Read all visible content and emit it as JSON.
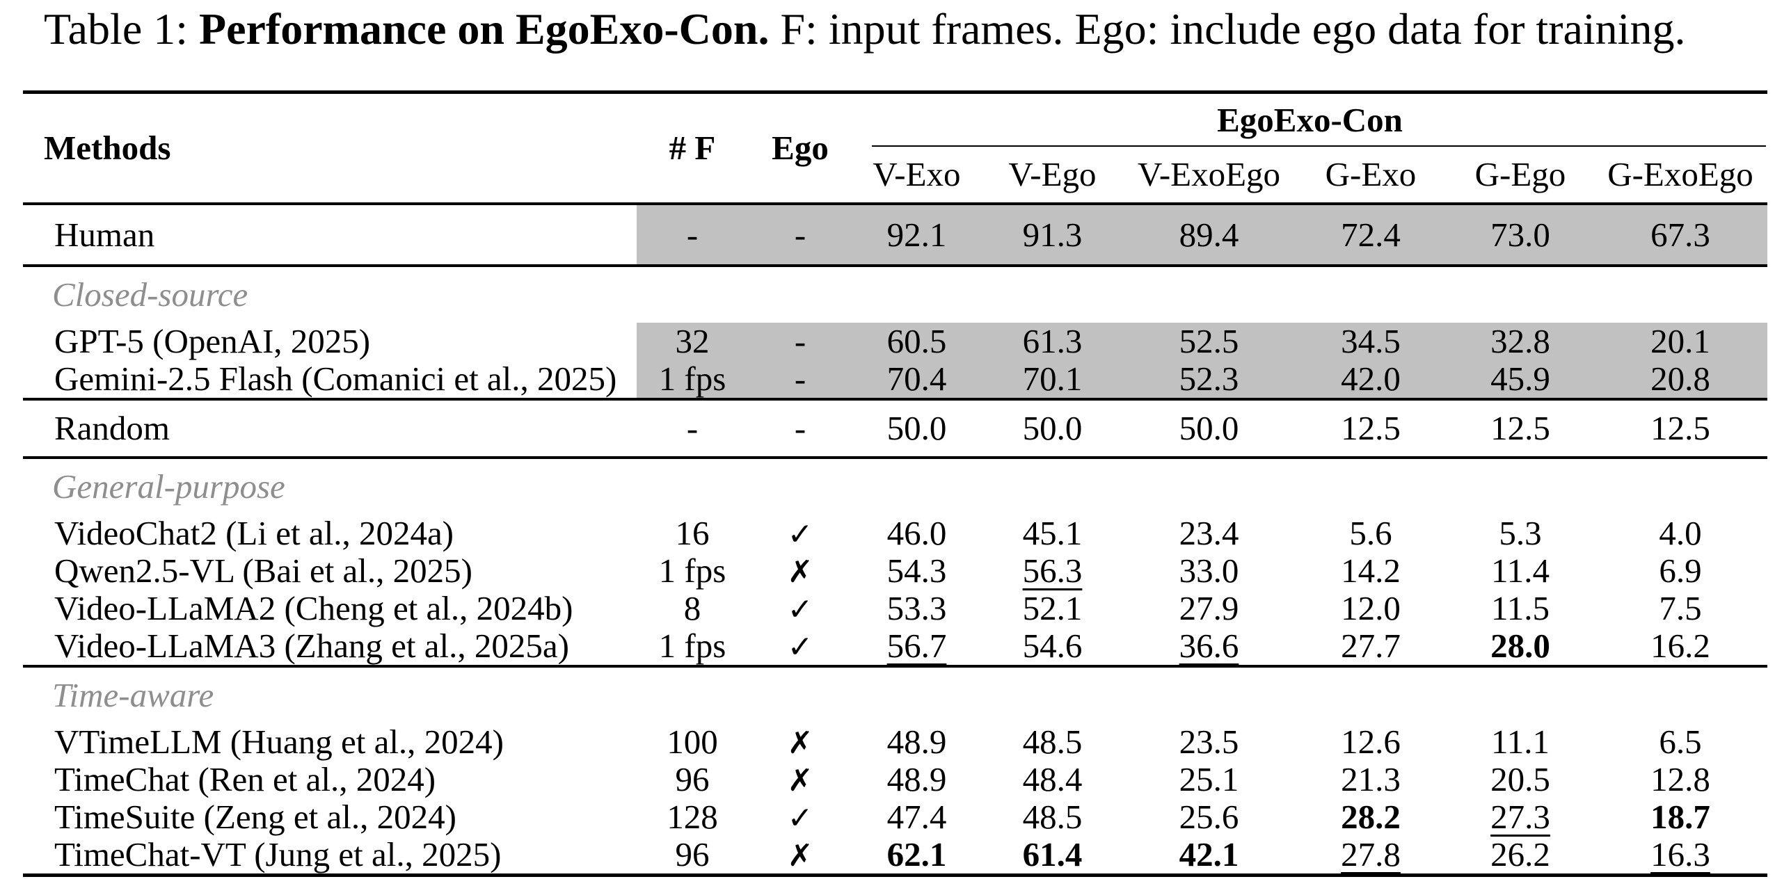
{
  "caption": {
    "prefix": "Table 1: ",
    "emphasis": "Performance on EgoExo-Con.",
    "suffix": " F: input frames. Ego: include ego data for training."
  },
  "colors": {
    "highlight": "#c1c1c1",
    "section_label": "#8e8e8e",
    "rule": "#000000"
  },
  "table": {
    "group_header": "EgoExo-Con",
    "columns": {
      "methods": "Methods",
      "frames": "# F",
      "ego": "Ego"
    },
    "subcolumns": [
      "V-Exo",
      "V-Ego",
      "V-ExoEgo",
      "G-Exo",
      "G-Ego",
      "G-ExoEgo"
    ],
    "rows": [
      {
        "type": "data",
        "variant": "human",
        "hl": true,
        "method": "Human",
        "frames": "-",
        "ego": "-",
        "values": [
          "92.1",
          "91.3",
          "89.4",
          "72.4",
          "73.0",
          "67.3"
        ],
        "styles": [
          "",
          "",
          "",
          "",
          "",
          ""
        ]
      },
      {
        "type": "section",
        "rule": true,
        "label": "Closed-source"
      },
      {
        "type": "data",
        "hl": true,
        "method": "GPT-5 (OpenAI, 2025)",
        "frames": "32",
        "ego": "-",
        "values": [
          "60.5",
          "61.3",
          "52.5",
          "34.5",
          "32.8",
          "20.1"
        ],
        "styles": [
          "",
          "",
          "",
          "",
          "",
          ""
        ]
      },
      {
        "type": "data",
        "hl": true,
        "method": "Gemini-2.5 Flash (Comanici et al., 2025)",
        "frames": "1 fps",
        "ego": "-",
        "values": [
          "70.4",
          "70.1",
          "52.3",
          "42.0",
          "45.9",
          "20.8"
        ],
        "styles": [
          "",
          "",
          "",
          "",
          "",
          ""
        ]
      },
      {
        "type": "data",
        "variant": "tall",
        "rule": true,
        "method": "Random",
        "frames": "-",
        "ego": "-",
        "values": [
          "50.0",
          "50.0",
          "50.0",
          "12.5",
          "12.5",
          "12.5"
        ],
        "styles": [
          "",
          "",
          "",
          "",
          "",
          ""
        ]
      },
      {
        "type": "section",
        "rule": true,
        "label": "General-purpose"
      },
      {
        "type": "data",
        "method": "VideoChat2 (Li et al., 2024a)",
        "frames": "16",
        "ego": "✓",
        "values": [
          "46.0",
          "45.1",
          "23.4",
          "5.6",
          "5.3",
          "4.0"
        ],
        "styles": [
          "",
          "",
          "",
          "",
          "",
          ""
        ]
      },
      {
        "type": "data",
        "method": "Qwen2.5-VL (Bai et al., 2025)",
        "frames": "1 fps",
        "ego": "✗",
        "values": [
          "54.3",
          "56.3",
          "33.0",
          "14.2",
          "11.4",
          "6.9"
        ],
        "styles": [
          "",
          "u",
          "",
          "",
          "",
          ""
        ]
      },
      {
        "type": "data",
        "method": "Video-LLaMA2 (Cheng et al., 2024b)",
        "frames": "8",
        "ego": "✓",
        "values": [
          "53.3",
          "52.1",
          "27.9",
          "12.0",
          "11.5",
          "7.5"
        ],
        "styles": [
          "",
          "",
          "",
          "",
          "",
          ""
        ]
      },
      {
        "type": "data",
        "method": "Video-LLaMA3 (Zhang et al., 2025a)",
        "frames": "1 fps",
        "ego": "✓",
        "values": [
          "56.7",
          "54.6",
          "36.6",
          "27.7",
          "28.0",
          "16.2"
        ],
        "styles": [
          "u",
          "",
          "u",
          "",
          "b",
          ""
        ]
      },
      {
        "type": "section",
        "rule": true,
        "label": "Time-aware"
      },
      {
        "type": "data",
        "method": "VTimeLLM (Huang et al., 2024)",
        "frames": "100",
        "ego": "✗",
        "values": [
          "48.9",
          "48.5",
          "23.5",
          "12.6",
          "11.1",
          "6.5"
        ],
        "styles": [
          "",
          "",
          "",
          "",
          "",
          ""
        ]
      },
      {
        "type": "data",
        "method": "TimeChat (Ren et al., 2024)",
        "frames": "96",
        "ego": "✗",
        "values": [
          "48.9",
          "48.4",
          "25.1",
          "21.3",
          "20.5",
          "12.8"
        ],
        "styles": [
          "",
          "",
          "",
          "",
          "",
          ""
        ]
      },
      {
        "type": "data",
        "method": "TimeSuite (Zeng et al., 2024)",
        "frames": "128",
        "ego": "✓",
        "values": [
          "47.4",
          "48.5",
          "25.6",
          "28.2",
          "27.3",
          "18.7"
        ],
        "styles": [
          "",
          "",
          "",
          "b",
          "u",
          "b"
        ]
      },
      {
        "type": "data",
        "method": "TimeChat-VT (Jung et al., 2025)",
        "frames": "96",
        "ego": "✗",
        "values": [
          "62.1",
          "61.4",
          "42.1",
          "27.8",
          "26.2",
          "16.3"
        ],
        "styles": [
          "b",
          "b",
          "b",
          "u",
          "",
          "u"
        ]
      }
    ]
  }
}
